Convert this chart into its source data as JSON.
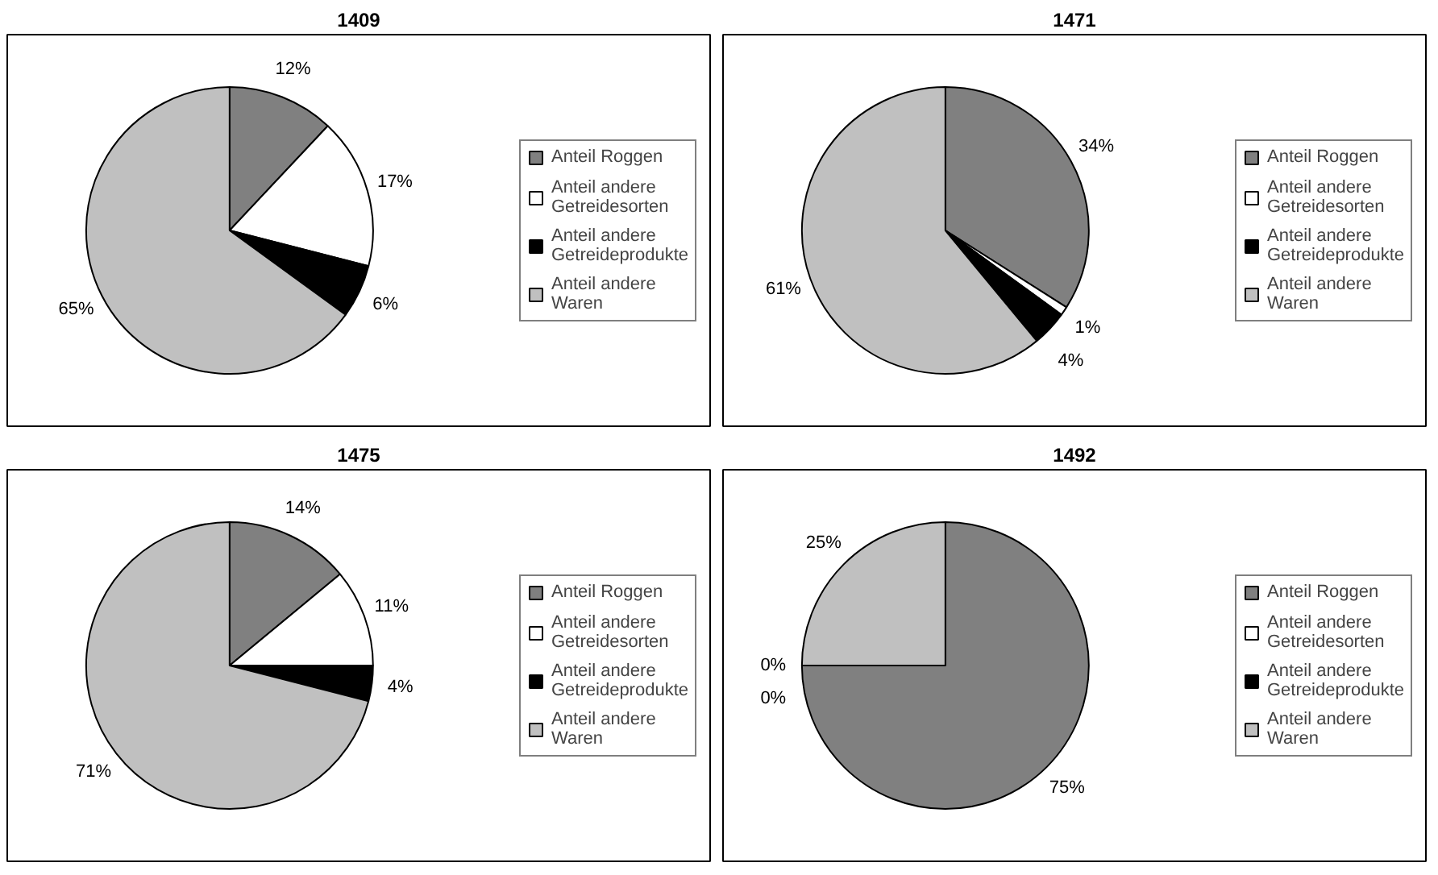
{
  "chart_data": [
    {
      "type": "pie",
      "title": "1409",
      "categories": [
        "Anteil Roggen",
        "Anteil andere Getreidesorten",
        "Anteil andere Getreideprodukte",
        "Anteil andere Waren"
      ],
      "values": [
        12,
        17,
        6,
        65
      ],
      "colors": [
        "#808080",
        "#ffffff",
        "#000000",
        "#c0c0c0"
      ],
      "value_labels": [
        "12%",
        "17%",
        "6%",
        "65%"
      ],
      "legend": "right"
    },
    {
      "type": "pie",
      "title": "1471",
      "categories": [
        "Anteil Roggen",
        "Anteil andere Getreidesorten",
        "Anteil andere Getreideprodukte",
        "Anteil andere Waren"
      ],
      "values": [
        34,
        1,
        4,
        61
      ],
      "colors": [
        "#808080",
        "#ffffff",
        "#000000",
        "#c0c0c0"
      ],
      "value_labels": [
        "34%",
        "1%",
        "4%",
        "61%"
      ],
      "legend": "right"
    },
    {
      "type": "pie",
      "title": "1475",
      "categories": [
        "Anteil Roggen",
        "Anteil andere Getreidesorten",
        "Anteil andere Getreideprodukte",
        "Anteil andere Waren"
      ],
      "values": [
        14,
        11,
        4,
        71
      ],
      "colors": [
        "#808080",
        "#ffffff",
        "#000000",
        "#c0c0c0"
      ],
      "value_labels": [
        "14%",
        "11%",
        "4%",
        "71%"
      ],
      "legend": "right"
    },
    {
      "type": "pie",
      "title": "1492",
      "categories": [
        "Anteil Roggen",
        "Anteil andere Getreidesorten",
        "Anteil andere Getreideprodukte",
        "Anteil andere Waren"
      ],
      "values": [
        75,
        0,
        0,
        25
      ],
      "colors": [
        "#808080",
        "#ffffff",
        "#000000",
        "#c0c0c0"
      ],
      "value_labels": [
        "75%",
        "0%",
        "0%",
        "25%"
      ],
      "legend": "right"
    }
  ]
}
